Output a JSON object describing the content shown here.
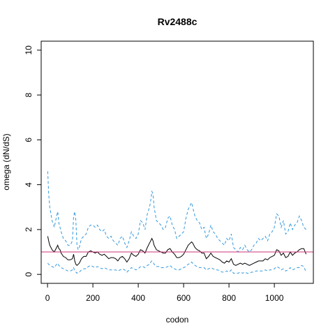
{
  "chart_data": {
    "type": "line",
    "title": "Rv2488c",
    "xlabel": "codon",
    "ylabel": "omega (dN/dS)",
    "xlim": [
      -28,
      1172
    ],
    "ylim": [
      -0.4,
      10.4
    ],
    "xticks": [
      0,
      200,
      400,
      600,
      800,
      1000
    ],
    "yticks": [
      0,
      2,
      4,
      6,
      8,
      10
    ],
    "grid": false,
    "reference_line": {
      "y": 1,
      "color": "#cc3377"
    },
    "colors": {
      "estimate": "#000000",
      "bounds": "#3399dd"
    },
    "series": [
      {
        "role": "upper",
        "style": "dashed",
        "x": [
          1,
          5,
          10,
          20,
          30,
          40,
          45,
          50,
          55,
          60,
          70,
          80,
          90,
          100,
          110,
          115,
          120,
          125,
          130,
          135,
          140,
          150,
          160,
          170,
          180,
          190,
          200,
          210,
          220,
          230,
          240,
          250,
          260,
          270,
          280,
          290,
          300,
          310,
          320,
          330,
          340,
          350,
          360,
          370,
          380,
          390,
          400,
          410,
          420,
          430,
          440,
          450,
          455,
          460,
          465,
          470,
          475,
          480,
          490,
          500,
          510,
          520,
          530,
          540,
          550,
          560,
          570,
          580,
          590,
          600,
          610,
          620,
          630,
          635,
          640,
          650,
          660,
          670,
          680,
          690,
          700,
          710,
          720,
          730,
          740,
          750,
          760,
          770,
          780,
          790,
          800,
          810,
          820,
          830,
          840,
          850,
          860,
          870,
          880,
          890,
          900,
          910,
          920,
          930,
          940,
          950,
          960,
          970,
          980,
          990,
          1000,
          1010,
          1020,
          1030,
          1040,
          1050,
          1060,
          1070,
          1080,
          1090,
          1100,
          1110,
          1120,
          1130,
          1140
        ],
        "y": [
          4.6,
          3.6,
          3.0,
          2.4,
          2.1,
          2.6,
          2.8,
          2.3,
          2.1,
          1.9,
          1.6,
          1.5,
          1.3,
          1.3,
          1.5,
          2.6,
          2.8,
          2.4,
          1.3,
          1.1,
          1.2,
          1.6,
          1.7,
          1.8,
          2.1,
          2.2,
          2.2,
          2.1,
          2.2,
          2.0,
          1.9,
          2.0,
          1.7,
          1.6,
          1.7,
          1.5,
          1.4,
          1.3,
          1.6,
          1.7,
          1.4,
          1.2,
          1.5,
          1.9,
          1.7,
          1.6,
          1.8,
          2.4,
          2.3,
          2.0,
          2.7,
          3.0,
          3.3,
          3.7,
          3.6,
          3.0,
          2.7,
          2.4,
          2.3,
          2.2,
          2.0,
          2.1,
          2.5,
          2.6,
          2.2,
          2.0,
          1.6,
          1.7,
          1.8,
          1.9,
          2.5,
          2.9,
          3.1,
          3.2,
          3.0,
          2.6,
          2.4,
          2.3,
          2.0,
          2.1,
          1.6,
          1.8,
          2.2,
          1.9,
          1.8,
          1.6,
          1.5,
          1.4,
          1.3,
          1.6,
          1.5,
          1.8,
          1.2,
          1.1,
          1.0,
          1.2,
          1.1,
          1.3,
          1.1,
          1.0,
          1.1,
          1.3,
          1.4,
          1.6,
          1.5,
          1.6,
          1.7,
          1.5,
          1.8,
          1.9,
          2.1,
          2.7,
          2.6,
          2.1,
          2.4,
          1.8,
          1.9,
          2.3,
          2.0,
          2.2,
          2.3,
          2.6,
          2.4,
          2.1,
          2.0
        ]
      },
      {
        "role": "estimate",
        "style": "solid",
        "x": [
          1,
          5,
          10,
          20,
          30,
          40,
          45,
          50,
          55,
          60,
          70,
          80,
          90,
          100,
          110,
          115,
          120,
          125,
          130,
          135,
          140,
          150,
          160,
          170,
          180,
          190,
          200,
          210,
          220,
          230,
          240,
          250,
          260,
          270,
          280,
          290,
          300,
          310,
          320,
          330,
          340,
          350,
          360,
          370,
          380,
          390,
          400,
          410,
          420,
          430,
          440,
          450,
          455,
          460,
          465,
          470,
          475,
          480,
          490,
          500,
          510,
          520,
          530,
          540,
          550,
          560,
          570,
          580,
          590,
          600,
          610,
          620,
          630,
          635,
          640,
          650,
          660,
          670,
          680,
          690,
          700,
          710,
          720,
          730,
          740,
          750,
          760,
          770,
          780,
          790,
          800,
          810,
          820,
          830,
          840,
          850,
          860,
          870,
          880,
          890,
          900,
          910,
          920,
          930,
          940,
          950,
          960,
          970,
          980,
          990,
          1000,
          1010,
          1020,
          1030,
          1040,
          1050,
          1060,
          1070,
          1080,
          1090,
          1100,
          1110,
          1120,
          1130,
          1140
        ],
        "y": [
          1.7,
          1.5,
          1.3,
          1.1,
          1.0,
          1.2,
          1.3,
          1.15,
          1.1,
          0.95,
          0.8,
          0.75,
          0.65,
          0.65,
          0.7,
          0.9,
          0.6,
          0.45,
          0.4,
          0.45,
          0.5,
          0.7,
          0.8,
          0.8,
          1.0,
          1.05,
          1.0,
          0.95,
          1.0,
          0.9,
          0.85,
          0.9,
          0.8,
          0.7,
          0.75,
          0.75,
          0.7,
          0.6,
          0.75,
          0.8,
          0.7,
          0.55,
          0.7,
          0.95,
          0.85,
          0.8,
          0.9,
          1.1,
          1.05,
          0.95,
          1.2,
          1.4,
          1.5,
          1.6,
          1.5,
          1.3,
          1.2,
          1.1,
          1.05,
          1.0,
          0.95,
          0.95,
          1.1,
          1.15,
          1.0,
          0.9,
          0.75,
          0.75,
          0.8,
          0.9,
          1.1,
          1.3,
          1.4,
          1.45,
          1.4,
          1.2,
          1.1,
          1.05,
          0.95,
          0.95,
          0.7,
          0.8,
          0.95,
          0.8,
          0.75,
          0.7,
          0.65,
          0.55,
          0.5,
          0.6,
          0.55,
          0.7,
          0.45,
          0.4,
          0.45,
          0.5,
          0.45,
          0.5,
          0.45,
          0.4,
          0.45,
          0.5,
          0.55,
          0.6,
          0.6,
          0.6,
          0.7,
          0.65,
          0.75,
          0.8,
          0.85,
          1.1,
          1.05,
          0.85,
          0.95,
          0.75,
          0.8,
          1.0,
          0.85,
          0.95,
          1.0,
          1.1,
          1.15,
          1.15,
          0.9
        ]
      },
      {
        "role": "lower",
        "style": "dashed",
        "x": [
          1,
          5,
          10,
          20,
          30,
          40,
          45,
          50,
          55,
          60,
          70,
          80,
          90,
          100,
          110,
          115,
          120,
          125,
          130,
          135,
          140,
          150,
          160,
          170,
          180,
          190,
          200,
          210,
          220,
          230,
          240,
          250,
          260,
          270,
          280,
          290,
          300,
          310,
          320,
          330,
          340,
          350,
          360,
          370,
          380,
          390,
          400,
          410,
          420,
          430,
          440,
          450,
          455,
          460,
          465,
          470,
          475,
          480,
          490,
          500,
          510,
          520,
          530,
          540,
          550,
          560,
          570,
          580,
          590,
          600,
          610,
          620,
          630,
          635,
          640,
          650,
          660,
          670,
          680,
          690,
          700,
          710,
          720,
          730,
          740,
          750,
          760,
          770,
          780,
          790,
          800,
          810,
          820,
          830,
          840,
          850,
          860,
          870,
          880,
          890,
          900,
          910,
          920,
          930,
          940,
          950,
          960,
          970,
          980,
          990,
          1000,
          1010,
          1020,
          1030,
          1040,
          1050,
          1060,
          1070,
          1080,
          1090,
          1100,
          1110,
          1120,
          1130,
          1140
        ],
        "y": [
          0.5,
          0.45,
          0.4,
          0.35,
          0.3,
          0.45,
          0.5,
          0.4,
          0.35,
          0.3,
          0.25,
          0.2,
          0.15,
          0.15,
          0.2,
          0.3,
          0.15,
          0.1,
          0.05,
          0.1,
          0.1,
          0.2,
          0.25,
          0.25,
          0.35,
          0.4,
          0.35,
          0.3,
          0.35,
          0.3,
          0.25,
          0.3,
          0.25,
          0.2,
          0.2,
          0.2,
          0.2,
          0.15,
          0.2,
          0.25,
          0.2,
          0.1,
          0.2,
          0.3,
          0.25,
          0.2,
          0.25,
          0.35,
          0.35,
          0.3,
          0.4,
          0.45,
          0.55,
          0.6,
          0.55,
          0.45,
          0.4,
          0.35,
          0.35,
          0.3,
          0.3,
          0.3,
          0.35,
          0.4,
          0.3,
          0.25,
          0.2,
          0.2,
          0.25,
          0.3,
          0.35,
          0.45,
          0.5,
          0.55,
          0.5,
          0.4,
          0.35,
          0.3,
          0.3,
          0.3,
          0.2,
          0.25,
          0.3,
          0.25,
          0.2,
          0.2,
          0.15,
          0.1,
          0.1,
          0.15,
          0.1,
          0.2,
          0.05,
          0.05,
          0.05,
          0.1,
          0.05,
          0.1,
          0.05,
          0.05,
          0.1,
          0.1,
          0.15,
          0.15,
          0.15,
          0.15,
          0.2,
          0.15,
          0.2,
          0.2,
          0.25,
          0.35,
          0.3,
          0.2,
          0.25,
          0.15,
          0.2,
          0.3,
          0.2,
          0.25,
          0.3,
          0.3,
          0.4,
          0.35,
          0.1
        ]
      }
    ]
  }
}
